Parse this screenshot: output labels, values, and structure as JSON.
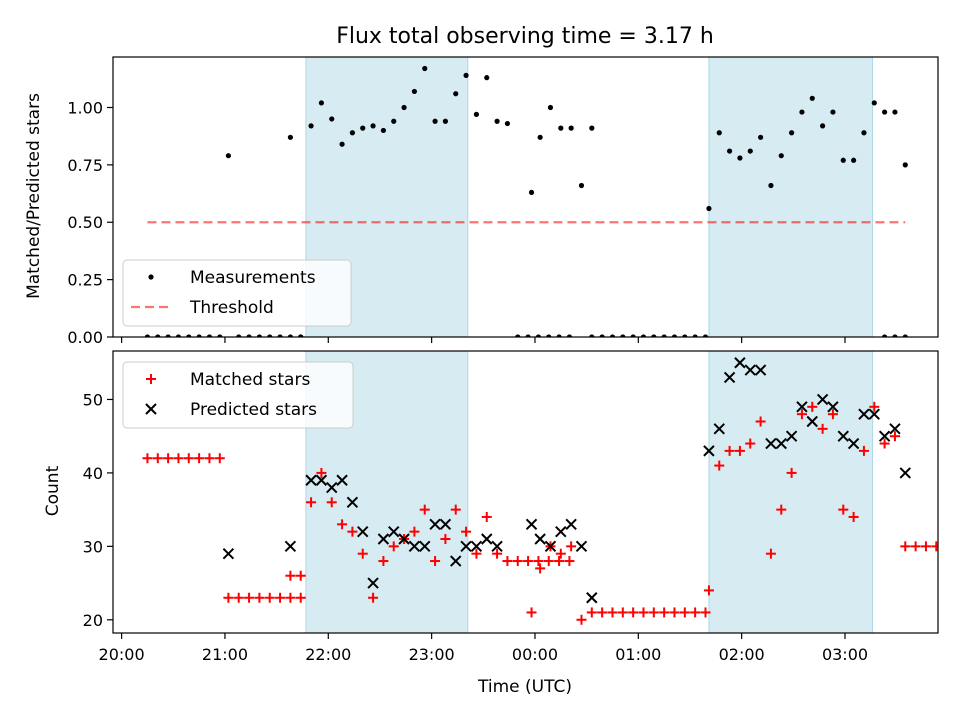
{
  "chart_data": {
    "type": "scatter",
    "title": "Flux total observing time = 3.17 h",
    "xlabel": "Time (UTC)",
    "x_ticks": [
      "20:00",
      "21:00",
      "22:00",
      "23:00",
      "00:00",
      "01:00",
      "02:00",
      "03:00"
    ],
    "colors": {
      "shade": "#add8e6",
      "measurement": "#000000",
      "threshold": "#ff0000",
      "matched": "#ff0000",
      "predicted": "#000000"
    },
    "shaded_intervals": [
      {
        "start": "21:47",
        "end": "23:21"
      },
      {
        "start": "01:41",
        "end": "03:16"
      }
    ],
    "panels": [
      {
        "ylabel": "Matched/Predicted stars",
        "ylim": [
          0.0,
          1.22
        ],
        "y_ticks": [
          "0.00",
          "0.25",
          "0.50",
          "0.75",
          "1.00"
        ],
        "legend_position": "lower-left",
        "series": [
          {
            "name": "Measurements",
            "marker": "dot",
            "points": [
              [
                "20:15",
                0
              ],
              [
                "20:21",
                0
              ],
              [
                "20:27",
                0
              ],
              [
                "20:33",
                0
              ],
              [
                "20:39",
                0
              ],
              [
                "20:45",
                0
              ],
              [
                "20:51",
                0
              ],
              [
                "20:57",
                0
              ],
              [
                "21:02",
                0.79
              ],
              [
                "21:08",
                0
              ],
              [
                "21:14",
                0
              ],
              [
                "21:20",
                0
              ],
              [
                "21:26",
                0
              ],
              [
                "21:32",
                0
              ],
              [
                "21:38",
                0
              ],
              [
                "21:44",
                0
              ],
              [
                "21:38",
                0.87
              ],
              [
                "21:44",
                0
              ],
              [
                "21:50",
                0.92
              ],
              [
                "21:56",
                1.02
              ],
              [
                "22:02",
                0.95
              ],
              [
                "22:08",
                0.84
              ],
              [
                "22:14",
                0.89
              ],
              [
                "22:20",
                0.91
              ],
              [
                "22:26",
                0.92
              ],
              [
                "22:32",
                0.9
              ],
              [
                "22:38",
                0.94
              ],
              [
                "22:44",
                1.0
              ],
              [
                "22:50",
                1.07
              ],
              [
                "22:56",
                1.17
              ],
              [
                "23:02",
                0.94
              ],
              [
                "23:08",
                0.94
              ],
              [
                "23:14",
                1.06
              ],
              [
                "23:20",
                1.14
              ],
              [
                "23:26",
                0.97
              ],
              [
                "23:32",
                1.13
              ],
              [
                "23:38",
                0.94
              ],
              [
                "23:44",
                0.93
              ],
              [
                "23:50",
                0
              ],
              [
                "23:56",
                0
              ],
              [
                "00:02",
                0
              ],
              [
                "00:08",
                0
              ],
              [
                "00:14",
                0
              ],
              [
                "00:20",
                0
              ],
              [
                "23:58",
                0.63
              ],
              [
                "00:03",
                0.87
              ],
              [
                "00:09",
                1.0
              ],
              [
                "00:15",
                0.91
              ],
              [
                "00:21",
                0.91
              ],
              [
                "00:27",
                0.66
              ],
              [
                "00:33",
                0.91
              ],
              [
                "00:33",
                0
              ],
              [
                "00:39",
                0
              ],
              [
                "00:45",
                0
              ],
              [
                "00:51",
                0
              ],
              [
                "00:57",
                0
              ],
              [
                "01:03",
                0
              ],
              [
                "01:09",
                0
              ],
              [
                "01:15",
                0
              ],
              [
                "01:21",
                0
              ],
              [
                "01:27",
                0
              ],
              [
                "01:33",
                0
              ],
              [
                "01:39",
                0
              ],
              [
                "01:41",
                0.56
              ],
              [
                "01:47",
                0.89
              ],
              [
                "01:53",
                0.81
              ],
              [
                "01:59",
                0.78
              ],
              [
                "02:05",
                0.81
              ],
              [
                "02:11",
                0.87
              ],
              [
                "02:17",
                0.66
              ],
              [
                "02:23",
                0.79
              ],
              [
                "02:29",
                0.89
              ],
              [
                "02:35",
                0.98
              ],
              [
                "02:41",
                1.04
              ],
              [
                "02:47",
                0.92
              ],
              [
                "02:53",
                0.98
              ],
              [
                "02:59",
                0.77
              ],
              [
                "03:05",
                0.77
              ],
              [
                "03:11",
                0.89
              ],
              [
                "03:17",
                1.02
              ],
              [
                "03:23",
                0.98
              ],
              [
                "03:29",
                0.98
              ],
              [
                "03:35",
                0.75
              ],
              [
                "03:23",
                0
              ],
              [
                "03:29",
                0
              ],
              [
                "03:35",
                0
              ]
            ]
          },
          {
            "name": "Threshold",
            "marker": "dashed-line",
            "points": [
              [
                "20:15",
                0.5
              ],
              [
                "03:35",
                0.5
              ]
            ]
          }
        ]
      },
      {
        "ylabel": "Count",
        "ylim": [
          18.2,
          56.6
        ],
        "y_ticks": [
          "20",
          "30",
          "40",
          "50"
        ],
        "legend_position": "upper-left",
        "series": [
          {
            "name": "Matched stars",
            "marker": "plus",
            "points": [
              [
                "20:15",
                42
              ],
              [
                "20:21",
                42
              ],
              [
                "20:27",
                42
              ],
              [
                "20:33",
                42
              ],
              [
                "20:39",
                42
              ],
              [
                "20:45",
                42
              ],
              [
                "20:51",
                42
              ],
              [
                "20:57",
                42
              ],
              [
                "21:02",
                23
              ],
              [
                "21:08",
                23
              ],
              [
                "21:14",
                23
              ],
              [
                "21:20",
                23
              ],
              [
                "21:26",
                23
              ],
              [
                "21:32",
                23
              ],
              [
                "21:38",
                23
              ],
              [
                "21:44",
                23
              ],
              [
                "21:38",
                26
              ],
              [
                "21:44",
                26
              ],
              [
                "21:50",
                36
              ],
              [
                "21:56",
                40
              ],
              [
                "22:02",
                36
              ],
              [
                "22:08",
                33
              ],
              [
                "22:14",
                32
              ],
              [
                "22:20",
                29
              ],
              [
                "22:26",
                23
              ],
              [
                "22:32",
                28
              ],
              [
                "22:38",
                30
              ],
              [
                "22:44",
                31
              ],
              [
                "22:50",
                32
              ],
              [
                "22:56",
                35
              ],
              [
                "23:02",
                28
              ],
              [
                "23:08",
                31
              ],
              [
                "23:14",
                35
              ],
              [
                "23:20",
                32
              ],
              [
                "23:26",
                29
              ],
              [
                "23:32",
                34
              ],
              [
                "23:38",
                29
              ],
              [
                "23:44",
                28
              ],
              [
                "23:50",
                28
              ],
              [
                "23:56",
                28
              ],
              [
                "00:02",
                28
              ],
              [
                "00:08",
                28
              ],
              [
                "00:14",
                28
              ],
              [
                "00:20",
                28
              ],
              [
                "23:58",
                21
              ],
              [
                "00:03",
                27
              ],
              [
                "00:09",
                30
              ],
              [
                "00:15",
                29
              ],
              [
                "00:21",
                30
              ],
              [
                "00:27",
                20
              ],
              [
                "00:33",
                21
              ],
              [
                "00:39",
                21
              ],
              [
                "00:45",
                21
              ],
              [
                "00:51",
                21
              ],
              [
                "00:57",
                21
              ],
              [
                "01:03",
                21
              ],
              [
                "01:09",
                21
              ],
              [
                "01:15",
                21
              ],
              [
                "01:21",
                21
              ],
              [
                "01:27",
                21
              ],
              [
                "01:33",
                21
              ],
              [
                "01:39",
                21
              ],
              [
                "01:41",
                24
              ],
              [
                "01:47",
                41
              ],
              [
                "01:53",
                43
              ],
              [
                "01:59",
                43
              ],
              [
                "02:05",
                44
              ],
              [
                "02:11",
                47
              ],
              [
                "02:17",
                29
              ],
              [
                "02:23",
                35
              ],
              [
                "02:29",
                40
              ],
              [
                "02:35",
                48
              ],
              [
                "02:41",
                49
              ],
              [
                "02:47",
                46
              ],
              [
                "02:53",
                48
              ],
              [
                "02:59",
                35
              ],
              [
                "03:05",
                34
              ],
              [
                "03:11",
                43
              ],
              [
                "03:17",
                49
              ],
              [
                "03:23",
                44
              ],
              [
                "03:29",
                45
              ],
              [
                "03:35",
                30
              ],
              [
                "03:41",
                30
              ],
              [
                "03:47",
                30
              ],
              [
                "03:53",
                30
              ]
            ]
          },
          {
            "name": "Predicted stars",
            "marker": "x",
            "points": [
              [
                "21:02",
                29
              ],
              [
                "21:38",
                30
              ],
              [
                "21:50",
                39
              ],
              [
                "21:56",
                39
              ],
              [
                "22:02",
                38
              ],
              [
                "22:08",
                39
              ],
              [
                "22:14",
                36
              ],
              [
                "22:20",
                32
              ],
              [
                "22:26",
                25
              ],
              [
                "22:32",
                31
              ],
              [
                "22:38",
                32
              ],
              [
                "22:44",
                31
              ],
              [
                "22:50",
                30
              ],
              [
                "22:56",
                30
              ],
              [
                "23:02",
                33
              ],
              [
                "23:08",
                33
              ],
              [
                "23:14",
                28
              ],
              [
                "23:20",
                30
              ],
              [
                "23:26",
                30
              ],
              [
                "23:32",
                31
              ],
              [
                "23:38",
                30
              ],
              [
                "23:58",
                33
              ],
              [
                "00:03",
                31
              ],
              [
                "00:09",
                30
              ],
              [
                "00:15",
                32
              ],
              [
                "00:21",
                33
              ],
              [
                "00:27",
                30
              ],
              [
                "00:33",
                23
              ],
              [
                "01:41",
                43
              ],
              [
                "01:47",
                46
              ],
              [
                "01:53",
                53
              ],
              [
                "01:59",
                55
              ],
              [
                "02:05",
                54
              ],
              [
                "02:11",
                54
              ],
              [
                "02:17",
                44
              ],
              [
                "02:23",
                44
              ],
              [
                "02:29",
                45
              ],
              [
                "02:35",
                49
              ],
              [
                "02:41",
                47
              ],
              [
                "02:47",
                50
              ],
              [
                "02:53",
                49
              ],
              [
                "02:59",
                45
              ],
              [
                "03:05",
                44
              ],
              [
                "03:11",
                48
              ],
              [
                "03:17",
                48
              ],
              [
                "03:23",
                45
              ],
              [
                "03:29",
                46
              ],
              [
                "03:35",
                40
              ]
            ]
          }
        ]
      }
    ]
  }
}
